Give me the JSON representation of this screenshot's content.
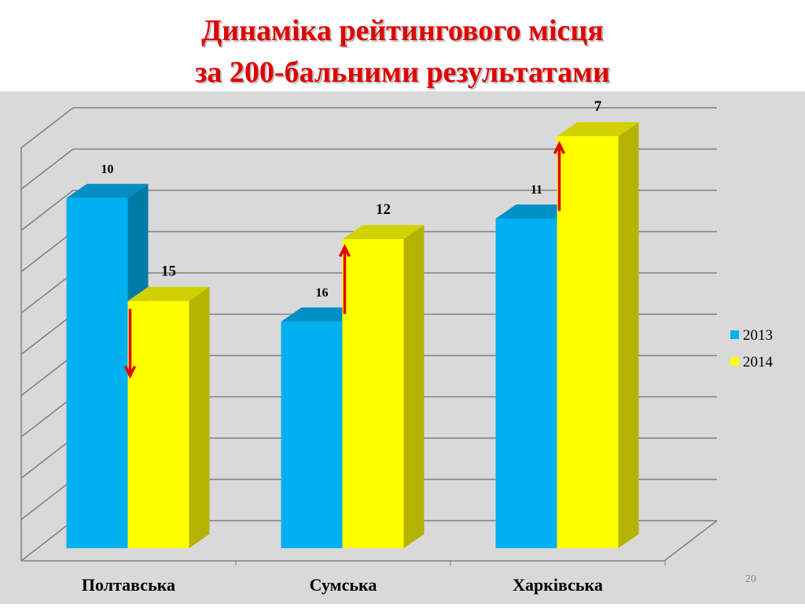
{
  "chart_data": {
    "type": "bar3d",
    "title": [
      "Динаміка рейтингового місця",
      "за  200-бальними результатами"
    ],
    "categories": [
      "Полтавська",
      "Сумська",
      "Харківська"
    ],
    "series": [
      {
        "name": "2013",
        "color": "#00b0f0",
        "values": [
          10,
          16,
          11
        ]
      },
      {
        "name": "2014",
        "color": "#ffff00",
        "values": [
          15,
          12,
          7
        ]
      }
    ],
    "ylim": [
      27,
      6
    ],
    "legend": "right",
    "grid": true
  },
  "page_number": "20"
}
